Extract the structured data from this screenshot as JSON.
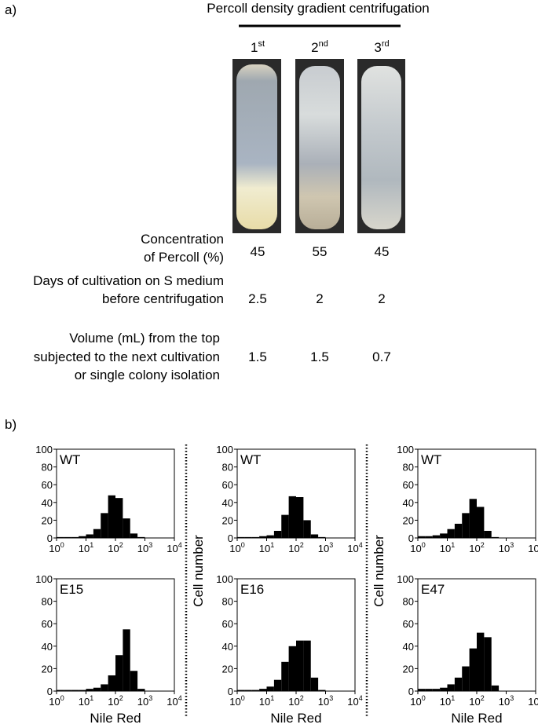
{
  "panel_a": {
    "label": "a)",
    "title": "Percoll density gradient centrifugation",
    "columns": [
      {
        "number": "1",
        "suffix": "st"
      },
      {
        "number": "2",
        "suffix": "nd"
      },
      {
        "number": "3",
        "suffix": "rd"
      }
    ],
    "rows": [
      {
        "label": [
          "Concentration",
          "of Percoll (%)"
        ],
        "values": [
          45,
          55,
          45
        ]
      },
      {
        "label": [
          "Days of cultivation on S medium",
          "before centrifugation"
        ],
        "values": [
          2.5,
          2,
          2
        ]
      },
      {
        "label": [
          "Volume (mL) from the top",
          "subjected to the next cultivation",
          "or single colony isolation"
        ],
        "values": [
          1.5,
          1.5,
          0.7
        ]
      }
    ]
  },
  "panel_b": {
    "label": "b)"
  },
  "chart_data": [
    {
      "type": "histogram",
      "annotation": "WT",
      "color": "#000000",
      "xscale": "log",
      "bins": [
        1,
        1.78,
        3.16,
        5.62,
        10,
        17.8,
        31.6,
        56.2,
        100,
        178,
        316,
        562,
        1000,
        1778,
        3162,
        5623,
        10000
      ],
      "values": [
        1,
        1,
        1,
        2,
        4,
        10,
        28,
        48,
        45,
        22,
        5,
        1,
        0,
        0,
        0,
        0
      ],
      "xlim": [
        1,
        10000
      ],
      "xticks": [
        {
          "value": 1,
          "base": "10",
          "exponent": "0"
        },
        {
          "value": 10,
          "base": "10",
          "exponent": "1"
        },
        {
          "value": 100,
          "base": "10",
          "exponent": "2"
        },
        {
          "value": 1000,
          "base": "10",
          "exponent": "3"
        },
        {
          "value": 10000,
          "base": "10",
          "exponent": "4"
        }
      ],
      "ylim": [
        0,
        100
      ],
      "yticks": [
        0,
        20,
        40,
        60,
        80,
        100
      ]
    },
    {
      "type": "histogram",
      "annotation": "WT",
      "color": "#000000",
      "xscale": "log",
      "bins": [
        1,
        1.78,
        3.16,
        5.62,
        10,
        17.8,
        31.6,
        56.2,
        100,
        178,
        316,
        562,
        1000,
        1778,
        3162,
        5623,
        10000
      ],
      "values": [
        1,
        1,
        1,
        2,
        3,
        8,
        26,
        47,
        46,
        20,
        4,
        1,
        0,
        0,
        0,
        0
      ],
      "xlim": [
        1,
        10000
      ],
      "xticks": [
        {
          "value": 1,
          "base": "10",
          "exponent": "0"
        },
        {
          "value": 10,
          "base": "10",
          "exponent": "1"
        },
        {
          "value": 100,
          "base": "10",
          "exponent": "2"
        },
        {
          "value": 1000,
          "base": "10",
          "exponent": "3"
        },
        {
          "value": 10000,
          "base": "10",
          "exponent": "4"
        }
      ],
      "ylim": [
        0,
        100
      ],
      "yticks": [
        0,
        20,
        40,
        60,
        80,
        100
      ]
    },
    {
      "type": "histogram",
      "annotation": "WT",
      "color": "#000000",
      "xscale": "log",
      "bins": [
        1,
        1.78,
        3.16,
        5.62,
        10,
        17.8,
        31.6,
        56.2,
        100,
        178,
        316,
        562,
        1000,
        1778,
        3162,
        5623,
        10000
      ],
      "values": [
        2,
        2,
        3,
        5,
        10,
        16,
        28,
        44,
        35,
        8,
        1,
        0,
        0,
        0,
        0,
        0
      ],
      "xlim": [
        1,
        10000
      ],
      "xticks": [
        {
          "value": 1,
          "base": "10",
          "exponent": "0"
        },
        {
          "value": 10,
          "base": "10",
          "exponent": "1"
        },
        {
          "value": 100,
          "base": "10",
          "exponent": "2"
        },
        {
          "value": 1000,
          "base": "10",
          "exponent": "3"
        },
        {
          "value": 10000,
          "base": "10",
          "exponent": "4"
        }
      ],
      "ylim": [
        0,
        100
      ],
      "yticks": [
        0,
        20,
        40,
        60,
        80,
        100
      ]
    },
    {
      "type": "histogram",
      "annotation": "E15",
      "color": "#000000",
      "xscale": "log",
      "x_label": "Nile Red",
      "bins": [
        1,
        1.78,
        3.16,
        5.62,
        10,
        17.8,
        31.6,
        56.2,
        100,
        178,
        316,
        562,
        1000,
        1778,
        3162,
        5623,
        10000
      ],
      "values": [
        1,
        1,
        1,
        1,
        2,
        3,
        6,
        14,
        32,
        55,
        18,
        2,
        0,
        0,
        0,
        0
      ],
      "xlim": [
        1,
        10000
      ],
      "xticks": [
        {
          "value": 1,
          "base": "10",
          "exponent": "0"
        },
        {
          "value": 10,
          "base": "10",
          "exponent": "1"
        },
        {
          "value": 100,
          "base": "10",
          "exponent": "2"
        },
        {
          "value": 1000,
          "base": "10",
          "exponent": "3"
        },
        {
          "value": 10000,
          "base": "10",
          "exponent": "4"
        }
      ],
      "ylim": [
        0,
        100
      ],
      "yticks": [
        0,
        20,
        40,
        60,
        80,
        100
      ]
    },
    {
      "type": "histogram",
      "annotation": "E16",
      "color": "#000000",
      "xscale": "log",
      "x_label": "Nile Red",
      "y_label": "Cell number",
      "bins": [
        1,
        1.78,
        3.16,
        5.62,
        10,
        17.8,
        31.6,
        56.2,
        100,
        178,
        316,
        562,
        1000,
        1778,
        3162,
        5623,
        10000
      ],
      "values": [
        1,
        1,
        1,
        2,
        4,
        10,
        26,
        40,
        45,
        45,
        12,
        1,
        0,
        0,
        0,
        0
      ],
      "xlim": [
        1,
        10000
      ],
      "xticks": [
        {
          "value": 1,
          "base": "10",
          "exponent": "0"
        },
        {
          "value": 10,
          "base": "10",
          "exponent": "1"
        },
        {
          "value": 100,
          "base": "10",
          "exponent": "2"
        },
        {
          "value": 1000,
          "base": "10",
          "exponent": "3"
        },
        {
          "value": 10000,
          "base": "10",
          "exponent": "4"
        }
      ],
      "ylim": [
        0,
        100
      ],
      "yticks": [
        0,
        20,
        40,
        60,
        80,
        100
      ]
    },
    {
      "type": "histogram",
      "annotation": "E47",
      "color": "#000000",
      "xscale": "log",
      "x_label": "Nile Red",
      "y_label": "Cell number",
      "bins": [
        1,
        1.78,
        3.16,
        5.62,
        10,
        17.8,
        31.6,
        56.2,
        100,
        178,
        316,
        562,
        1000,
        1778,
        3162,
        5623,
        10000
      ],
      "values": [
        2,
        2,
        2,
        3,
        6,
        12,
        22,
        38,
        52,
        48,
        5,
        0,
        0,
        0,
        0,
        0
      ],
      "xlim": [
        1,
        10000
      ],
      "xticks": [
        {
          "value": 1,
          "base": "10",
          "exponent": "0"
        },
        {
          "value": 10,
          "base": "10",
          "exponent": "1"
        },
        {
          "value": 100,
          "base": "10",
          "exponent": "2"
        },
        {
          "value": 1000,
          "base": "10",
          "exponent": "3"
        },
        {
          "value": 10000,
          "base": "10",
          "exponent": "4"
        }
      ],
      "ylim": [
        0,
        100
      ],
      "yticks": [
        0,
        20,
        40,
        60,
        80,
        100
      ]
    }
  ]
}
